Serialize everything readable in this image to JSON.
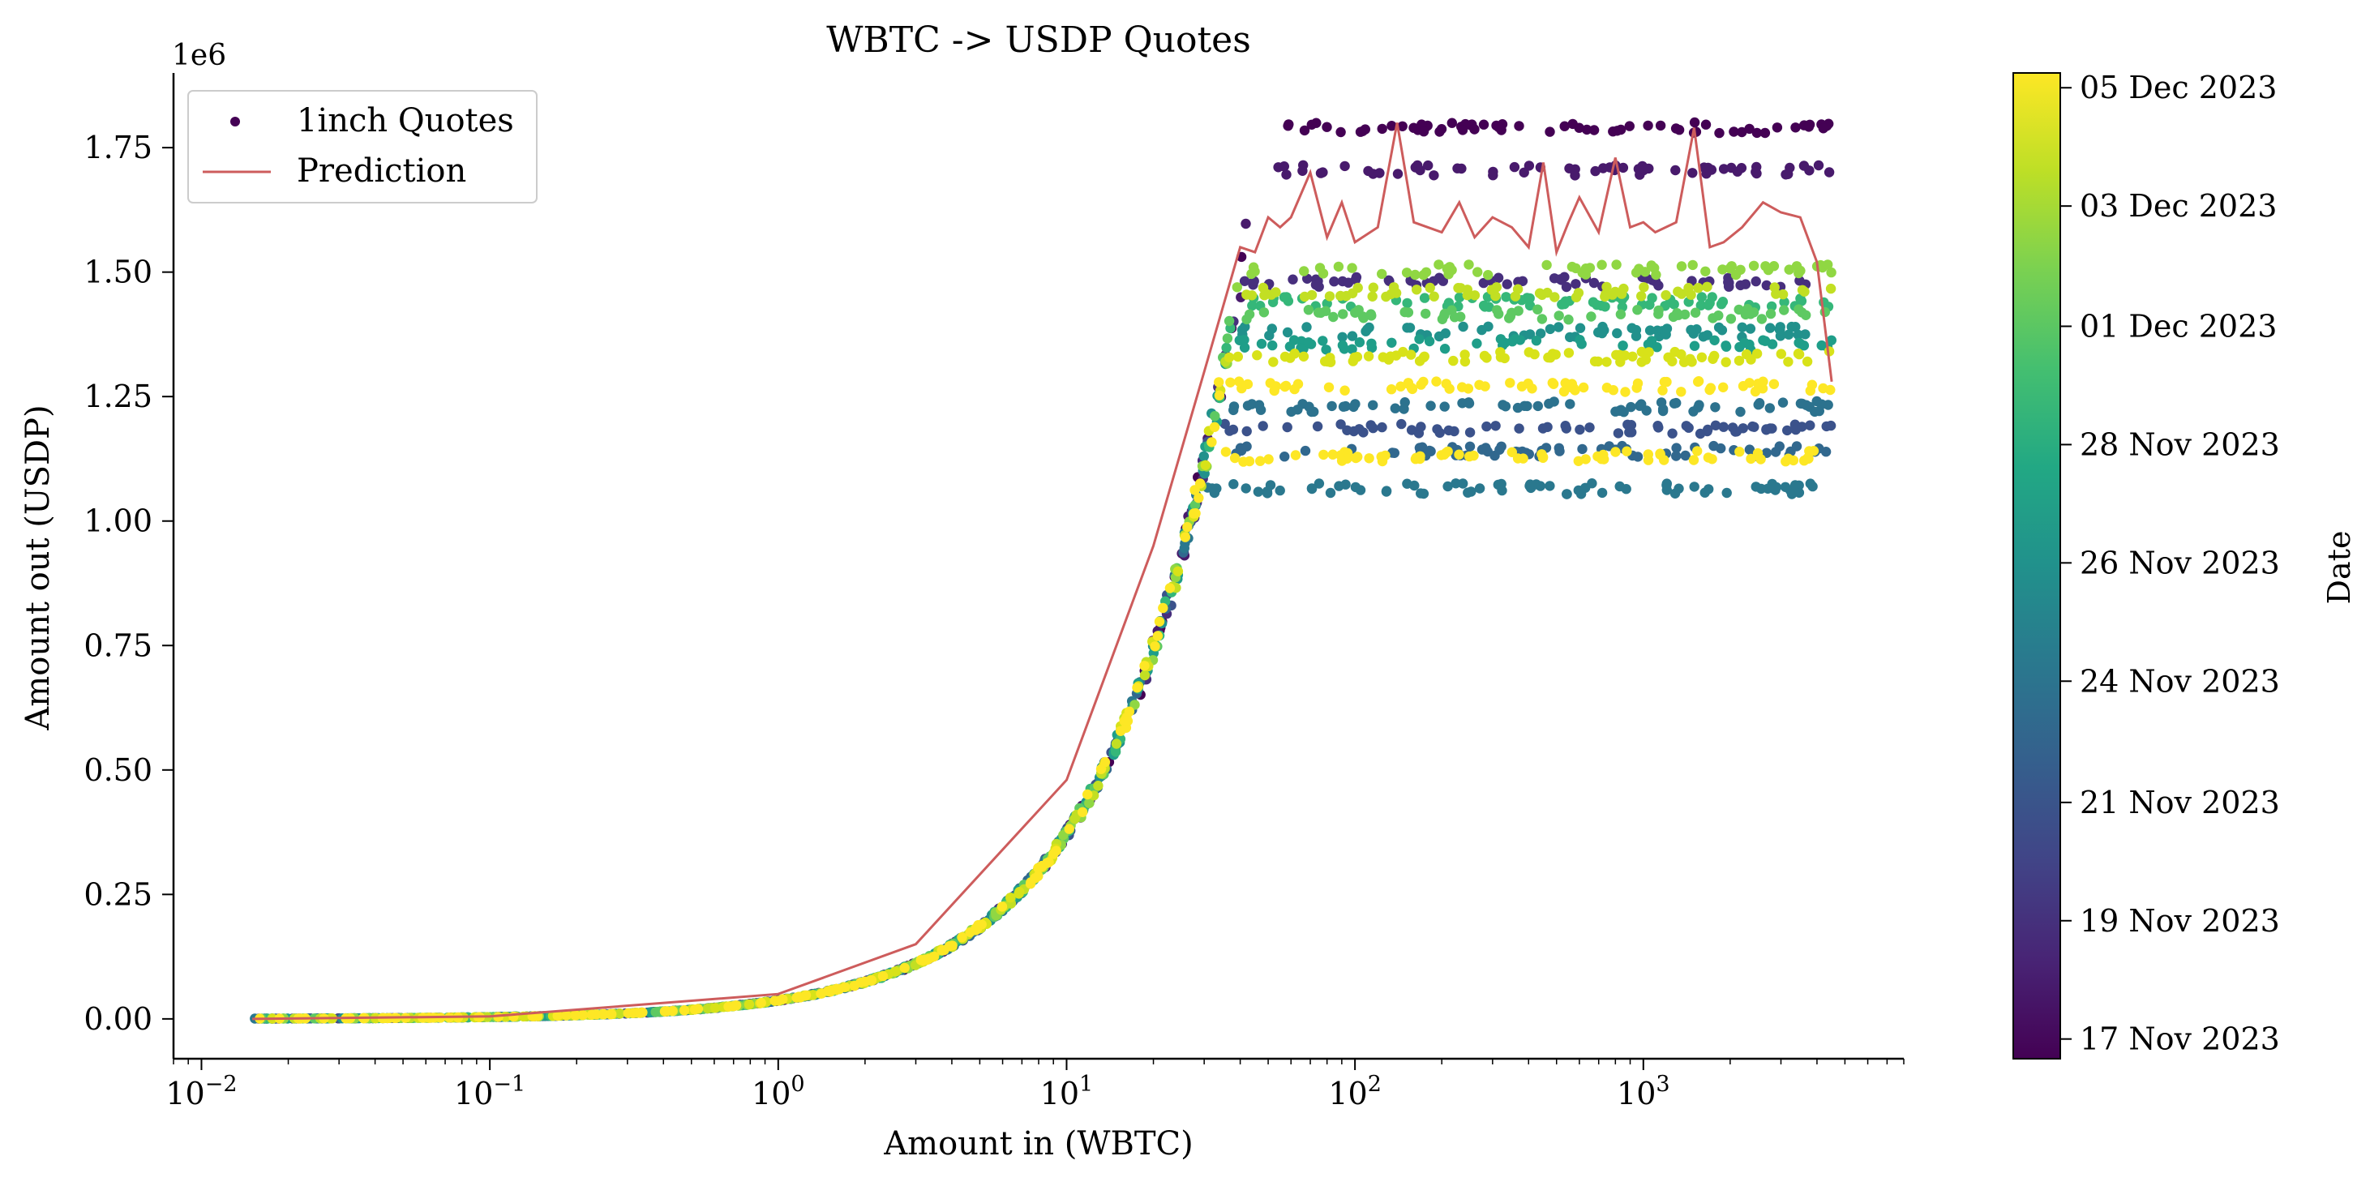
{
  "chart_data": {
    "type": "scatter",
    "title": "WBTC -> USDP Quotes",
    "xlabel": "Amount in (WBTC)",
    "ylabel": "Amount out (USDP)",
    "x_scale": "log",
    "xlim": [
      0.008,
      8000
    ],
    "ylim": [
      -80000,
      1900000
    ],
    "y_offset_label": "1e6",
    "x_ticks": [
      {
        "value": 0.01,
        "base": "10",
        "exp": "−2"
      },
      {
        "value": 0.1,
        "base": "10",
        "exp": "−1"
      },
      {
        "value": 1,
        "base": "10",
        "exp": "0"
      },
      {
        "value": 10,
        "base": "10",
        "exp": "1"
      },
      {
        "value": 100,
        "base": "10",
        "exp": "2"
      },
      {
        "value": 1000,
        "base": "10",
        "exp": "3"
      }
    ],
    "y_ticks": [
      {
        "value": 0,
        "label": "0.00"
      },
      {
        "value": 250000,
        "label": "0.25"
      },
      {
        "value": 500000,
        "label": "0.50"
      },
      {
        "value": 750000,
        "label": "0.75"
      },
      {
        "value": 1000000,
        "label": "1.00"
      },
      {
        "value": 1250000,
        "label": "1.25"
      },
      {
        "value": 1500000,
        "label": "1.50"
      },
      {
        "value": 1750000,
        "label": "1.75"
      }
    ],
    "grid": false,
    "legend_position": "top-left",
    "legend": [
      {
        "name": "1inch Quotes",
        "marker": "dot",
        "color": "#440154"
      },
      {
        "name": "Prediction",
        "marker": "line",
        "color": "#cd5c5c"
      }
    ],
    "colorbar": {
      "label": "Date",
      "colormap": "viridis",
      "ticks": [
        {
          "label": "17 Nov 2023",
          "fraction": 0.02
        },
        {
          "label": "19 Nov 2023",
          "fraction": 0.14
        },
        {
          "label": "21 Nov 2023",
          "fraction": 0.26
        },
        {
          "label": "24 Nov 2023",
          "fraction": 0.383
        },
        {
          "label": "26 Nov 2023",
          "fraction": 0.503
        },
        {
          "label": "28 Nov 2023",
          "fraction": 0.623
        },
        {
          "label": "01 Dec 2023",
          "fraction": 0.743
        },
        {
          "label": "03 Dec 2023",
          "fraction": 0.865
        },
        {
          "label": "05 Dec 2023",
          "fraction": 0.985
        }
      ]
    },
    "series": [
      {
        "name": "1inch Quotes",
        "color_by": "date",
        "x_range": [
          0.015,
          4500
        ],
        "rate_usdp_per_wbtc": 37500,
        "saturation_levels": [
          {
            "color": "#440154",
            "plateau": 1790000
          },
          {
            "color": "#481a6c",
            "plateau": 1705000
          },
          {
            "color": "#472f7d",
            "plateau": 1480000
          },
          {
            "color": "#3b528b",
            "plateau": 1185000
          },
          {
            "color": "#31688e",
            "plateau": 1140000
          },
          {
            "color": "#2c728e",
            "plateau": 1230000
          },
          {
            "color": "#2a788e",
            "plateau": 1065000
          },
          {
            "color": "#21918c",
            "plateau": 1380000
          },
          {
            "color": "#1f9e89",
            "plateau": 1355000
          },
          {
            "color": "#35b779",
            "plateau": 1440000
          },
          {
            "color": "#5ec962",
            "plateau": 1415000
          },
          {
            "color": "#90d743",
            "plateau": 1505000
          },
          {
            "color": "#c2df23",
            "plateau": 1460000
          },
          {
            "color": "#d8e219",
            "plateau": 1330000
          },
          {
            "color": "#fde725",
            "plateau": 1270000
          },
          {
            "color": "#fde725",
            "plateau": 1130000
          }
        ]
      },
      {
        "name": "Prediction",
        "type": "line",
        "color": "#cd5c5c",
        "x": [
          0.015,
          0.1,
          1,
          3,
          10,
          20,
          30,
          40,
          45,
          50,
          55,
          60,
          70,
          80,
          90,
          100,
          120,
          140,
          160,
          200,
          230,
          260,
          300,
          350,
          400,
          450,
          500,
          550,
          600,
          700,
          800,
          900,
          1000,
          1100,
          1300,
          1500,
          1700,
          1900,
          2200,
          2600,
          3000,
          3500,
          4000,
          4500
        ],
        "y": [
          0,
          5000,
          50000,
          150000,
          480000,
          950000,
          1300000,
          1550000,
          1540000,
          1610000,
          1590000,
          1610000,
          1700000,
          1570000,
          1640000,
          1560000,
          1590000,
          1800000,
          1600000,
          1580000,
          1640000,
          1570000,
          1610000,
          1590000,
          1550000,
          1720000,
          1540000,
          1600000,
          1650000,
          1580000,
          1730000,
          1590000,
          1600000,
          1580000,
          1600000,
          1790000,
          1550000,
          1560000,
          1590000,
          1640000,
          1620000,
          1610000,
          1520000,
          1280000
        ]
      }
    ]
  }
}
